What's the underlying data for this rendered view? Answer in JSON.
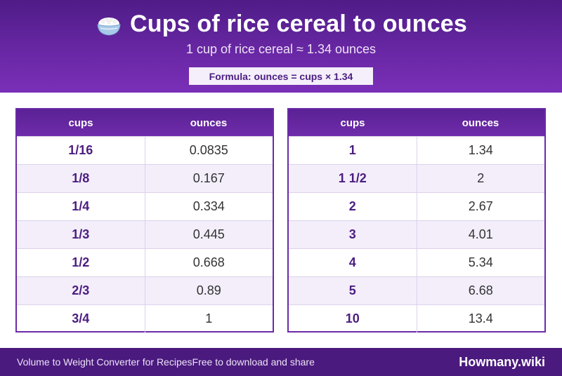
{
  "header": {
    "title": "Cups of rice cereal to ounces",
    "title_icon": "rice-bowl-icon",
    "subtitle": "1 cup of rice cereal ≈ 1.34 ounces",
    "formula": "Formula: ounces = cups × 1.34"
  },
  "tables": {
    "left": {
      "col_cups": "cups",
      "col_ounces": "ounces",
      "rows": [
        {
          "cups": "1/16",
          "ounces": "0.0835"
        },
        {
          "cups": "1/8",
          "ounces": "0.167"
        },
        {
          "cups": "1/4",
          "ounces": "0.334"
        },
        {
          "cups": "1/3",
          "ounces": "0.445"
        },
        {
          "cups": "1/2",
          "ounces": "0.668"
        },
        {
          "cups": "2/3",
          "ounces": "0.89"
        },
        {
          "cups": "3/4",
          "ounces": "1"
        }
      ]
    },
    "right": {
      "col_cups": "cups",
      "col_ounces": "ounces",
      "rows": [
        {
          "cups": "1",
          "ounces": "1.34"
        },
        {
          "cups": "1 1/2",
          "ounces": "2"
        },
        {
          "cups": "2",
          "ounces": "2.67"
        },
        {
          "cups": "3",
          "ounces": "4.01"
        },
        {
          "cups": "4",
          "ounces": "5.34"
        },
        {
          "cups": "5",
          "ounces": "6.68"
        },
        {
          "cups": "10",
          "ounces": "13.4"
        }
      ]
    }
  },
  "footer": {
    "tagline": "Volume to Weight Converter for Recipes",
    "tagline2": "Free to download and share",
    "brand": "Howmany.wiki"
  },
  "colors": {
    "header_bg": "#5a2194",
    "accent": "#4b1d80",
    "row_alt": "#f3eefa",
    "footer_bg": "#4a1a7e"
  }
}
